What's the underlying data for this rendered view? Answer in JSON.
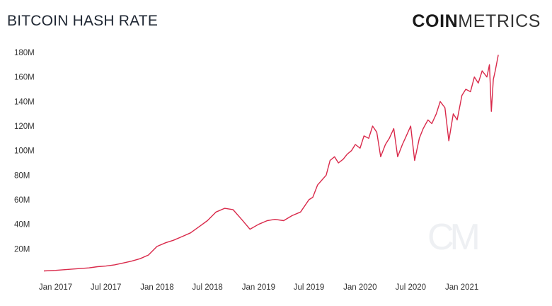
{
  "header": {
    "title": "BITCOIN HASH RATE",
    "brand_strong": "COIN",
    "brand_light": "METRICS",
    "watermark": "CM"
  },
  "chart_data": {
    "type": "line",
    "title": "BITCOIN HASH RATE",
    "xlabel": "",
    "ylabel": "",
    "grid": false,
    "legend": "none",
    "line_color": "#d9294a",
    "ylim": [
      0,
      180000000
    ],
    "xlim": [
      "2016-11-20",
      "2021-06-01"
    ],
    "y_ticks": [
      {
        "value": 20000000,
        "label": "20M"
      },
      {
        "value": 40000000,
        "label": "40M"
      },
      {
        "value": 60000000,
        "label": "60M"
      },
      {
        "value": 80000000,
        "label": "80M"
      },
      {
        "value": 100000000,
        "label": "100M"
      },
      {
        "value": 120000000,
        "label": "120M"
      },
      {
        "value": 140000000,
        "label": "140M"
      },
      {
        "value": 160000000,
        "label": "160M"
      },
      {
        "value": 180000000,
        "label": "180M"
      }
    ],
    "x_ticks": [
      {
        "value": "2017-01-01",
        "label": "Jan 2017"
      },
      {
        "value": "2017-07-01",
        "label": "Jul 2017"
      },
      {
        "value": "2018-01-01",
        "label": "Jan 2018"
      },
      {
        "value": "2018-07-01",
        "label": "Jul 2018"
      },
      {
        "value": "2019-01-01",
        "label": "Jan 2019"
      },
      {
        "value": "2019-07-01",
        "label": "Jul 2019"
      },
      {
        "value": "2020-01-01",
        "label": "Jan 2020"
      },
      {
        "value": "2020-07-01",
        "label": "Jul 2020"
      },
      {
        "value": "2021-01-01",
        "label": "Jan 2021"
      }
    ],
    "series": [
      {
        "x": [
          "2016-11-20",
          "2017-01-01",
          "2017-03-01",
          "2017-05-01",
          "2017-06-01",
          "2017-07-01",
          "2017-08-01",
          "2017-09-01",
          "2017-10-01",
          "2017-11-01",
          "2017-12-01",
          "2018-01-01",
          "2018-02-01",
          "2018-03-01",
          "2018-04-01",
          "2018-05-01",
          "2018-06-01",
          "2018-07-01",
          "2018-08-01",
          "2018-09-01",
          "2018-10-01",
          "2018-11-01",
          "2018-12-01",
          "2019-01-01",
          "2019-02-01",
          "2019-03-01",
          "2019-04-01",
          "2019-05-01",
          "2019-06-01",
          "2019-07-01",
          "2019-07-15",
          "2019-08-01",
          "2019-09-01",
          "2019-09-15",
          "2019-10-01",
          "2019-10-15",
          "2019-11-01",
          "2019-11-15",
          "2019-12-01",
          "2019-12-15",
          "2020-01-01",
          "2020-01-15",
          "2020-02-01",
          "2020-02-15",
          "2020-03-01",
          "2020-03-15",
          "2020-04-01",
          "2020-04-15",
          "2020-05-01",
          "2020-05-15",
          "2020-06-01",
          "2020-06-15",
          "2020-07-01",
          "2020-07-15",
          "2020-08-01",
          "2020-08-15",
          "2020-09-01",
          "2020-09-15",
          "2020-10-01",
          "2020-10-15",
          "2020-11-01",
          "2020-11-15",
          "2020-12-01",
          "2020-12-15",
          "2021-01-01",
          "2021-01-15",
          "2021-02-01",
          "2021-02-15",
          "2021-03-01",
          "2021-03-15",
          "2021-04-01",
          "2021-04-10",
          "2021-04-17",
          "2021-04-24",
          "2021-05-01",
          "2021-05-12"
        ],
        "values": [
          2000000,
          2500000,
          3500000,
          4500000,
          5500000,
          6000000,
          7000000,
          8500000,
          10000000,
          12000000,
          15000000,
          22000000,
          25000000,
          27000000,
          30000000,
          33000000,
          38000000,
          43000000,
          50000000,
          53000000,
          52000000,
          44000000,
          36000000,
          40000000,
          43000000,
          44000000,
          43000000,
          47000000,
          50000000,
          60000000,
          62000000,
          72000000,
          80000000,
          92000000,
          95000000,
          90000000,
          93000000,
          97000000,
          100000000,
          105000000,
          102000000,
          112000000,
          110000000,
          120000000,
          115000000,
          95000000,
          105000000,
          110000000,
          118000000,
          95000000,
          105000000,
          112000000,
          120000000,
          92000000,
          110000000,
          118000000,
          125000000,
          122000000,
          130000000,
          140000000,
          135000000,
          108000000,
          130000000,
          125000000,
          145000000,
          150000000,
          148000000,
          160000000,
          155000000,
          165000000,
          160000000,
          170000000,
          132000000,
          158000000,
          165000000,
          178000000
        ]
      }
    ]
  }
}
